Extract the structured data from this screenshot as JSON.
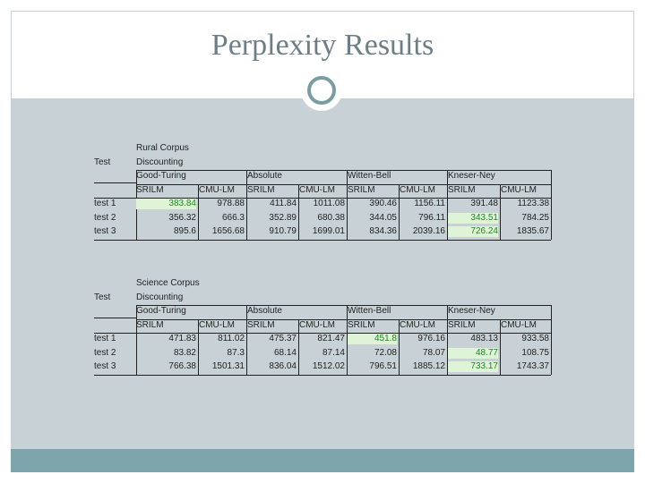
{
  "slide": {
    "title": "Perplexity Results",
    "colors": {
      "band": "#c8d2d6",
      "bottom_bar": "#7ea5ab",
      "title": "#6c7f86",
      "highlight_text": "#1c8a1c",
      "highlight_bg": "#dff3d6"
    }
  },
  "tables": [
    {
      "corpus": "Rural Corpus",
      "discounting": "Discounting",
      "test_label": "Test",
      "methods": [
        "Good-Turing",
        "Absolute",
        "Witten-Bell",
        "Kneser-Ney"
      ],
      "tools": [
        "SRILM",
        "CMU-LM"
      ],
      "rows": [
        {
          "label": "test 1",
          "values": [
            "383.84",
            "978.88",
            "411.84",
            "1011.08",
            "390.46",
            "1156.11",
            "391.48",
            "1123.38"
          ]
        },
        {
          "label": "test 2",
          "values": [
            "356.32",
            "666.3",
            "352.89",
            "680.38",
            "344.05",
            "796.11",
            "343.51",
            "784.25"
          ]
        },
        {
          "label": "test 3",
          "values": [
            "895.6",
            "1656.68",
            "910.79",
            "1699.01",
            "834.36",
            "2039.16",
            "726.24",
            "1835.67"
          ]
        }
      ]
    },
    {
      "corpus": "Science Corpus",
      "discounting": "Discounting",
      "test_label": "Test",
      "methods": [
        "Good-Turing",
        "Absolute",
        "Witten-Bell",
        "Kneser-Ney"
      ],
      "tools": [
        "SRILM",
        "CMU-LM"
      ],
      "rows": [
        {
          "label": "test 1",
          "values": [
            "471.83",
            "811.02",
            "475.37",
            "821.47",
            "451.8",
            "976.16",
            "483.13",
            "933.58"
          ]
        },
        {
          "label": "test 2",
          "values": [
            "83.82",
            "87.3",
            "68.14",
            "87.14",
            "72.08",
            "78.07",
            "48.77",
            "108.75"
          ]
        },
        {
          "label": "test 3",
          "values": [
            "766.38",
            "1501.31",
            "836.04",
            "1512.02",
            "796.51",
            "1885.12",
            "733.17",
            "1743.37"
          ]
        }
      ]
    }
  ]
}
